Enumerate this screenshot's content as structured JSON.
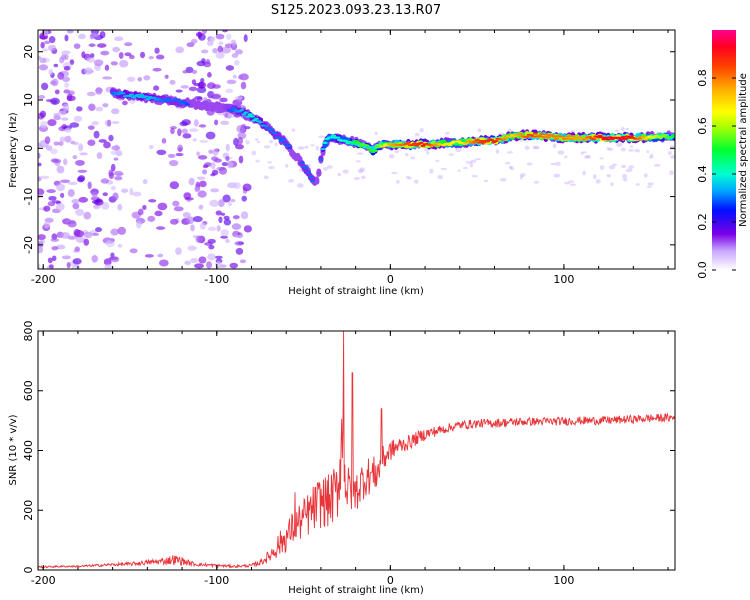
{
  "figure": {
    "title": "S125.2023.093.23.13.R07"
  },
  "chart_data": [
    {
      "type": "heatmap",
      "title": "",
      "xlabel": "Height of straight line (km)",
      "ylabel": "Frequency (Hz)",
      "xlim": [
        -203,
        164
      ],
      "ylim": [
        -25,
        24.5
      ],
      "x_ticks": [
        -200,
        -100,
        0,
        100
      ],
      "y_ticks": [
        -20,
        -10,
        0,
        10,
        20
      ],
      "x_tick_labels": [
        "-200",
        "-100",
        "0",
        "100"
      ],
      "y_tick_labels": [
        "-20",
        "-10",
        "0",
        "10",
        "20"
      ],
      "ridge": {
        "x": [
          -160,
          -150,
          -140,
          -130,
          -120,
          -110,
          -100,
          -90,
          -85,
          -80,
          -75,
          -70,
          -65,
          -60,
          -55,
          -50,
          -45,
          -42,
          -40,
          -38,
          -35,
          -30,
          -25,
          -20,
          -15,
          -10,
          -5,
          0,
          10,
          20,
          30,
          40,
          50,
          60,
          70,
          80,
          90,
          100,
          110,
          120,
          130,
          140,
          150,
          164
        ],
        "y": [
          11.5,
          11,
          10.5,
          10,
          9.5,
          9,
          8.5,
          8,
          7.5,
          6.5,
          5.5,
          4,
          2.5,
          1,
          -1.5,
          -3.5,
          -6.5,
          -7,
          -2,
          0.5,
          2.5,
          2,
          1.5,
          1.2,
          0.5,
          -0.5,
          0.8,
          0.8,
          0.8,
          0.8,
          1,
          1.2,
          1.5,
          1.5,
          2.5,
          2.8,
          2.5,
          2.2,
          2.2,
          2.2,
          2.2,
          2.2,
          2.3,
          2.5
        ],
        "amplitude": [
          0.3,
          0.35,
          0.35,
          0.3,
          0.3,
          0.25,
          0.25,
          0.3,
          0.35,
          0.4,
          0.35,
          0.3,
          0.3,
          0.3,
          0.25,
          0.3,
          0.3,
          0.25,
          0.3,
          0.4,
          0.4,
          0.4,
          0.4,
          0.5,
          0.55,
          0.5,
          0.6,
          0.75,
          0.85,
          0.9,
          0.7,
          0.65,
          0.85,
          0.9,
          0.7,
          0.85,
          0.8,
          0.8,
          0.75,
          0.9,
          0.95,
          0.9,
          0.65,
          0.5
        ]
      },
      "colorbar": {
        "label": "Normalized spectral amplitude",
        "range": [
          0,
          1
        ],
        "ticks": [
          0.0,
          0.2,
          0.4,
          0.6,
          0.8
        ],
        "tick_labels": [
          "0.0",
          "0.2",
          "0.4",
          "0.6",
          "0.8"
        ]
      }
    },
    {
      "type": "line",
      "title": "",
      "xlabel": "Height of straight line (km)",
      "ylabel": "SNR (10 * v/v)",
      "xlim": [
        -203,
        164
      ],
      "ylim": [
        0,
        800
      ],
      "x_ticks": [
        -200,
        -100,
        0,
        100
      ],
      "y_ticks": [
        0,
        200,
        400,
        600,
        800
      ],
      "x_tick_labels": [
        "-200",
        "-100",
        "0",
        "100"
      ],
      "y_tick_labels": [
        "0",
        "200",
        "400",
        "600",
        "800"
      ],
      "series": [
        {
          "color": "#e8353a",
          "x": [
            -203,
            -190,
            -180,
            -170,
            -160,
            -150,
            -140,
            -130,
            -125,
            -120,
            -115,
            -110,
            -100,
            -90,
            -80,
            -75,
            -70,
            -65,
            -60,
            -55,
            -50,
            -45,
            -40,
            -35,
            -30,
            -28,
            -26,
            -25,
            -23,
            -20,
            -15,
            -10,
            -7,
            -5,
            -3,
            0,
            5,
            10,
            20,
            30,
            40,
            50,
            60,
            70,
            80,
            90,
            100,
            110,
            120,
            130,
            140,
            150,
            164
          ],
          "y": [
            10,
            12,
            12,
            15,
            18,
            20,
            25,
            30,
            35,
            30,
            22,
            18,
            15,
            12,
            15,
            25,
            45,
            80,
            110,
            150,
            170,
            200,
            230,
            230,
            270,
            450,
            330,
            260,
            270,
            260,
            310,
            320,
            330,
            360,
            380,
            400,
            415,
            425,
            455,
            470,
            485,
            490,
            492,
            495,
            497,
            497,
            498,
            500,
            500,
            502,
            505,
            508,
            510
          ],
          "noise": [
            3,
            3,
            3,
            4,
            5,
            6,
            8,
            12,
            18,
            14,
            8,
            6,
            5,
            4,
            5,
            10,
            20,
            40,
            50,
            60,
            70,
            80,
            90,
            90,
            100,
            150,
            110,
            90,
            80,
            70,
            70,
            60,
            60,
            50,
            45,
            35,
            30,
            25,
            20,
            16,
            15,
            15,
            15,
            15,
            14,
            14,
            14,
            14,
            14,
            14,
            14,
            14,
            14
          ],
          "peaks": [
            {
              "x": -27,
              "y": 800
            },
            {
              "x": -5,
              "y": 540
            },
            {
              "x": -55,
              "y": 260
            },
            {
              "x": -22,
              "y": 660
            }
          ]
        }
      ]
    }
  ]
}
